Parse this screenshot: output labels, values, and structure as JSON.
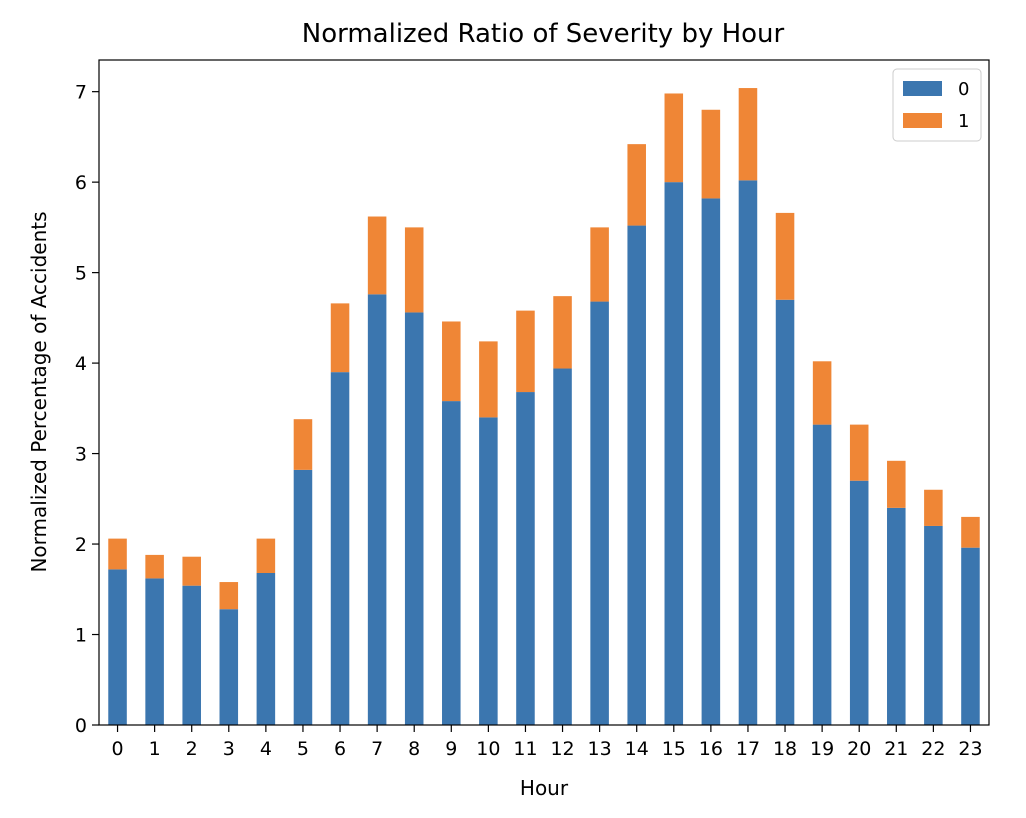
{
  "chart_data": {
    "type": "bar",
    "stacked": true,
    "title": "Normalized Ratio of Severity by Hour",
    "xlabel": "Hour",
    "ylabel": "Normalized Percentage of Accidents",
    "ylim": [
      0,
      7.35
    ],
    "y_ticks": [
      "0",
      "1",
      "2",
      "3",
      "4",
      "5",
      "6",
      "7"
    ],
    "legend_position": "top-right",
    "grid": false,
    "categories": [
      "0",
      "1",
      "2",
      "3",
      "4",
      "5",
      "6",
      "7",
      "8",
      "9",
      "10",
      "11",
      "12",
      "13",
      "14",
      "15",
      "16",
      "17",
      "18",
      "19",
      "20",
      "21",
      "22",
      "23"
    ],
    "series": [
      {
        "name": "0",
        "color": "#3b76af",
        "values": [
          1.72,
          1.62,
          1.54,
          1.28,
          1.68,
          2.82,
          3.9,
          4.76,
          4.56,
          3.58,
          3.4,
          3.68,
          3.94,
          4.68,
          5.52,
          6.0,
          5.82,
          6.02,
          4.7,
          3.32,
          2.7,
          2.4,
          2.2,
          1.96
        ]
      },
      {
        "name": "1",
        "color": "#ef8636",
        "values": [
          0.34,
          0.26,
          0.32,
          0.3,
          0.38,
          0.56,
          0.76,
          0.86,
          0.94,
          0.88,
          0.84,
          0.9,
          0.8,
          0.82,
          0.9,
          0.98,
          0.98,
          1.02,
          0.96,
          0.7,
          0.62,
          0.52,
          0.4,
          0.34
        ]
      }
    ]
  }
}
